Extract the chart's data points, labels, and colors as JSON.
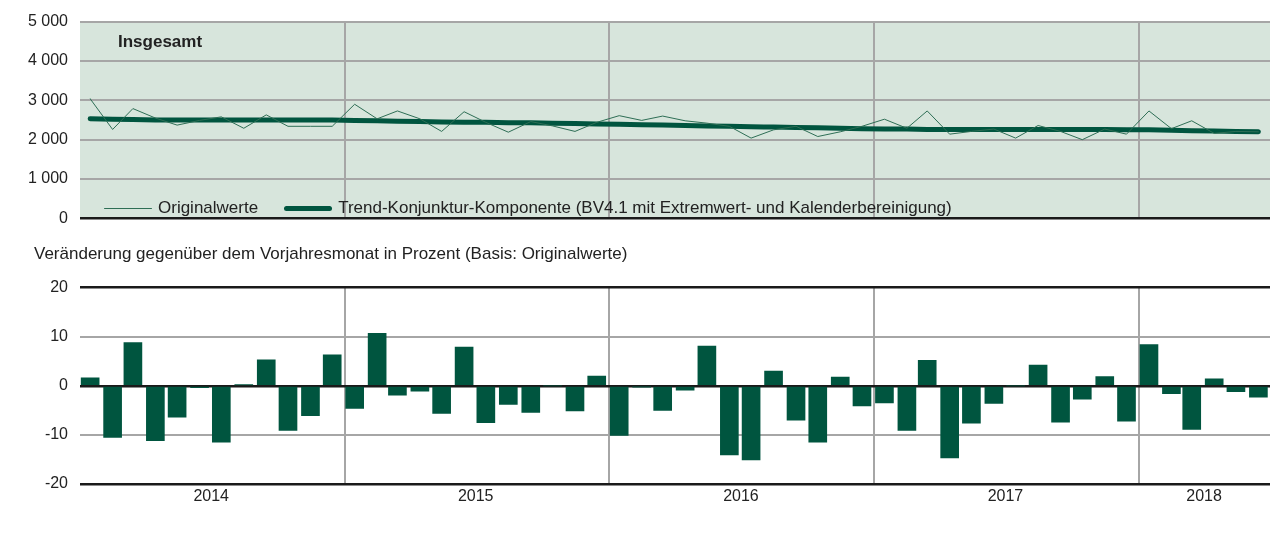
{
  "chart_data": [
    {
      "type": "line",
      "title": "Insgesamt",
      "x": [
        "2014-01-15",
        "2014-02-15",
        "2014-03-15",
        "2014-04-15",
        "2014-05-15",
        "2014-06-15",
        "2014-07-15",
        "2014-08-15",
        "2014-09-15",
        "2014-10-15",
        "2014-11-15",
        "2014-12-15",
        "2015-01-15",
        "2015-02-15",
        "2015-03-15",
        "2015-04-15",
        "2015-05-15",
        "2015-06-15",
        "2015-07-15",
        "2015-08-15",
        "2015-09-15",
        "2015-10-15",
        "2015-11-15",
        "2015-12-15",
        "2016-01-15",
        "2016-02-15",
        "2016-03-15",
        "2016-04-15",
        "2016-05-15",
        "2016-06-15",
        "2016-07-15",
        "2016-08-15",
        "2016-09-15",
        "2016-10-15",
        "2016-11-15",
        "2016-12-15",
        "2017-01-15",
        "2017-02-15",
        "2017-03-15",
        "2017-04-15",
        "2017-05-15",
        "2017-06-15",
        "2017-07-15",
        "2017-08-15",
        "2017-09-15",
        "2017-10-15",
        "2017-11-15",
        "2017-12-15",
        "2018-01-15",
        "2018-02-15",
        "2018-03-15",
        "2018-04-15",
        "2018-05-15",
        "2018-06-15"
      ],
      "series": [
        {
          "name": "Originalwerte",
          "color": "#2e6e55",
          "values": [
            3040,
            2260,
            2790,
            2550,
            2370,
            2490,
            2580,
            2290,
            2630,
            2340,
            2340,
            2340,
            2900,
            2530,
            2730,
            2530,
            2210,
            2710,
            2440,
            2190,
            2460,
            2350,
            2210,
            2440,
            2610,
            2490,
            2600,
            2480,
            2420,
            2340,
            2040,
            2250,
            2340,
            2080,
            2200,
            2340,
            2520,
            2290,
            2730,
            2140,
            2210,
            2270,
            2040,
            2360,
            2210,
            2000,
            2270,
            2140,
            2730,
            2280,
            2480,
            2160,
            2210,
            2200
          ]
        },
        {
          "name": "Trend-Konjunktur-Komponente (BV4.1 mit Extremwert- und Kalenderbereinigung)",
          "color": "#00553f",
          "values": [
            2530,
            2520,
            2510,
            2500,
            2500,
            2500,
            2500,
            2500,
            2500,
            2500,
            2500,
            2500,
            2490,
            2480,
            2470,
            2460,
            2450,
            2440,
            2440,
            2430,
            2430,
            2420,
            2410,
            2400,
            2390,
            2380,
            2370,
            2360,
            2350,
            2340,
            2330,
            2320,
            2310,
            2300,
            2290,
            2280,
            2270,
            2270,
            2260,
            2260,
            2260,
            2260,
            2260,
            2260,
            2260,
            2260,
            2260,
            2250,
            2250,
            2240,
            2230,
            2220,
            2210,
            2200
          ]
        }
      ],
      "xlim": [
        "2014-01-01",
        "2018-07-01"
      ],
      "xticks": [
        {
          "value": "2015-01-01",
          "label": null
        },
        {
          "value": "2016-01-01",
          "label": null
        },
        {
          "value": "2017-01-01",
          "label": null
        },
        {
          "value": "2018-01-01",
          "label": null
        }
      ],
      "ylim": [
        0,
        5000
      ],
      "yticks": [
        0,
        {
          "value": 1000,
          "label": "1 000"
        },
        {
          "value": 2000,
          "label": "2 000"
        },
        {
          "value": 3000,
          "label": "3 000"
        },
        {
          "value": 4000,
          "label": "4 000"
        },
        {
          "value": 5000,
          "label": "5 000"
        }
      ],
      "grid": true,
      "legend": "bottom left",
      "tick_labels": "y"
    },
    {
      "type": "bar",
      "title": "Veränderung gegenüber dem Vorjahresmonat in Prozent (Basis: Originalwerte)",
      "x": [
        "2014-01-15",
        "2014-02-15",
        "2014-03-15",
        "2014-04-15",
        "2014-05-15",
        "2014-06-15",
        "2014-07-15",
        "2014-08-15",
        "2014-09-15",
        "2014-10-15",
        "2014-11-15",
        "2014-12-15",
        "2015-01-15",
        "2015-02-15",
        "2015-03-15",
        "2015-04-15",
        "2015-05-15",
        "2015-06-15",
        "2015-07-15",
        "2015-08-15",
        "2015-09-15",
        "2015-10-15",
        "2015-11-15",
        "2015-12-15",
        "2016-01-15",
        "2016-02-15",
        "2016-03-15",
        "2016-04-15",
        "2016-05-15",
        "2016-06-15",
        "2016-07-15",
        "2016-08-15",
        "2016-09-15",
        "2016-10-15",
        "2016-11-15",
        "2016-12-15",
        "2017-01-15",
        "2017-02-15",
        "2017-03-15",
        "2017-04-15",
        "2017-05-15",
        "2017-06-15",
        "2017-07-15",
        "2017-08-15",
        "2017-09-15",
        "2017-10-15",
        "2017-11-15",
        "2017-12-15",
        "2018-01-15",
        "2018-02-15",
        "2018-03-15",
        "2018-04-15",
        "2018-05-15",
        "2018-06-15"
      ],
      "values": [
        1.6,
        -10.5,
        8.8,
        -11.2,
        -6.4,
        -0.4,
        -11.5,
        0.2,
        5.3,
        -9.1,
        -6.1,
        6.3,
        -4.6,
        10.7,
        -1.9,
        -1.1,
        -5.6,
        7.9,
        -7.5,
        -3.8,
        -5.4,
        0,
        -5.1,
        2.0,
        -10.1,
        -0.2,
        -5.0,
        -0.9,
        8.1,
        -14.1,
        -15.1,
        3.0,
        -7.0,
        -11.5,
        1.8,
        -4.1,
        -3.5,
        -9.1,
        5.2,
        -14.7,
        -7.6,
        -3.6,
        0,
        4.2,
        -7.4,
        -2.7,
        1.9,
        -7.2,
        8.4,
        -1.6,
        -8.9,
        1.4,
        -1.2,
        -2.3
      ],
      "color": "#00553f",
      "xlim": [
        "2014-01-01",
        "2018-07-01"
      ],
      "xticks": [
        {
          "value": "2014-07-01",
          "label": "2014"
        },
        {
          "value": "2015-01-01",
          "label": null
        },
        {
          "value": "2015-07-01",
          "label": "2015"
        },
        {
          "value": "2016-01-01",
          "label": null
        },
        {
          "value": "2016-07-01",
          "label": "2016"
        },
        {
          "value": "2017-01-01",
          "label": null
        },
        {
          "value": "2017-07-01",
          "label": "2017"
        },
        {
          "value": "2018-01-01",
          "label": null
        },
        {
          "value": "2018-04-01",
          "label": "2018"
        }
      ],
      "ylim": [
        -20,
        20
      ],
      "yticks": [
        -20,
        -10,
        0,
        10,
        20
      ],
      "grid": true
    }
  ]
}
